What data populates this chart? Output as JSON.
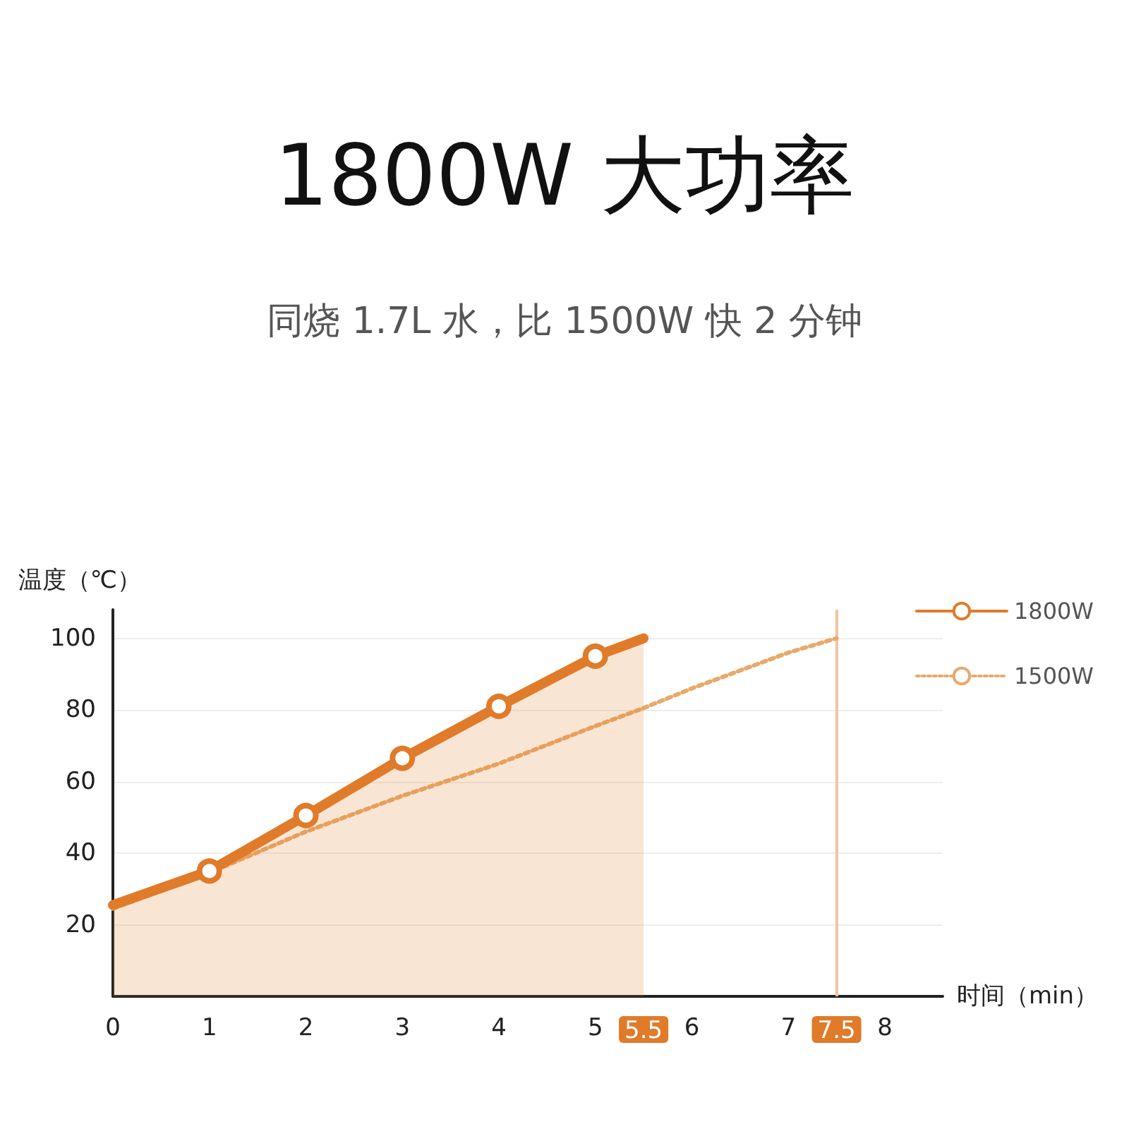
{
  "chart_data": {
    "type": "line",
    "title": "1800W 大功率",
    "subtitle": "同烧 1.7L 水，比 1500W 快 2 分钟",
    "xlabel": "时间（min）",
    "ylabel": "温度（℃）",
    "xlim": [
      0,
      8.6
    ],
    "xticks": [
      0,
      1,
      2,
      3,
      4,
      5,
      5.5,
      6,
      7,
      7.5,
      8
    ],
    "ylim": [
      0,
      108
    ],
    "yticks": [
      20,
      40,
      60,
      80,
      100
    ],
    "series": [
      {
        "name": "1800W",
        "type": "area",
        "color": "#e07b2a",
        "x": [
          0,
          1,
          2,
          3,
          4,
          5,
          5.5
        ],
        "values": [
          25.5,
          35,
          50.5,
          66.5,
          81,
          95,
          100
        ],
        "marker": "circle",
        "line_style": "solid"
      },
      {
        "name": "1500W",
        "color": "#e8a96a",
        "x": [
          0,
          1,
          2,
          3,
          4,
          5,
          5.5,
          6,
          7,
          7.5
        ],
        "values": [
          24.5,
          34.5,
          46,
          56,
          65,
          75.5,
          80.5,
          86,
          96,
          100
        ],
        "marker": "none",
        "line_style": "dotted"
      }
    ],
    "ref_lines": [
      {
        "axis": "x",
        "value": 7.5,
        "color": "#f0c4a0"
      }
    ],
    "grid": "y",
    "legend": "top right"
  }
}
